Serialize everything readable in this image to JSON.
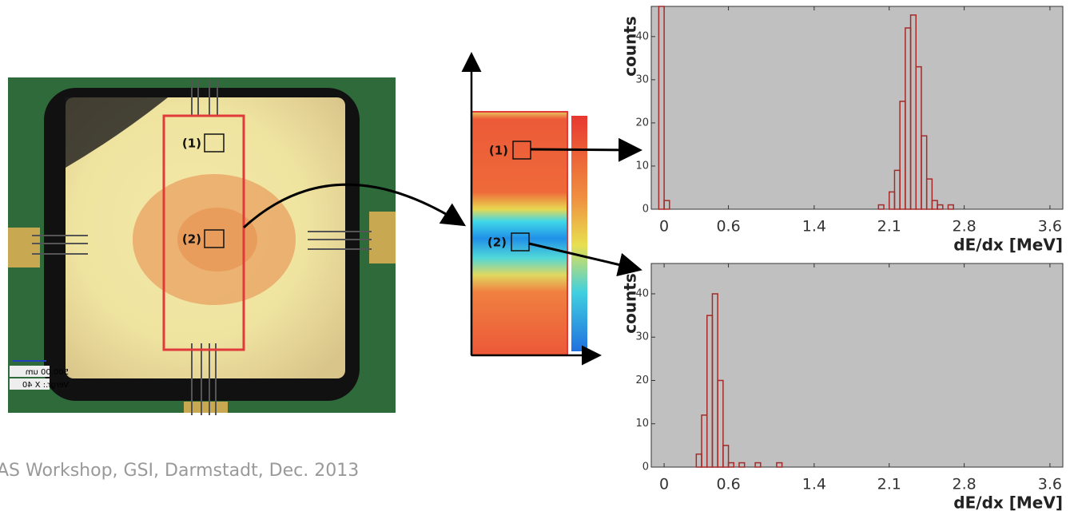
{
  "chart_data": [
    {
      "type": "histogram",
      "x_label": "dE/dx [MeV]",
      "y_label": "counts",
      "color": "#a52a2a",
      "xlim": [
        -0.12,
        3.72
      ],
      "ylim": [
        0,
        47
      ],
      "xticks": [
        0,
        0.6,
        1.4,
        2.1,
        2.8,
        3.6
      ],
      "yticks": [
        0,
        10,
        20,
        30,
        40
      ],
      "bins": [
        -0.1,
        -0.05,
        0,
        0.05,
        0.1,
        0.15,
        0.2,
        0.25,
        0.3,
        0.35,
        0.4,
        0.45,
        0.5,
        0.55,
        0.6,
        0.65,
        0.7,
        0.75,
        0.8,
        0.85,
        0.9,
        0.95,
        1,
        1.05,
        1.1,
        1.15,
        1.2,
        1.25,
        1.3,
        1.35,
        1.4,
        1.45,
        1.5,
        1.55,
        1.6,
        1.65,
        1.7,
        1.75,
        1.8,
        1.85,
        1.9,
        1.95,
        2,
        2.05,
        2.1,
        2.15,
        2.2,
        2.25,
        2.3,
        2.35,
        2.4,
        2.45,
        2.5,
        2.55,
        2.6,
        2.65,
        2.7,
        2.75,
        2.8,
        2.85,
        2.9,
        2.95,
        3,
        3.05,
        3.1,
        3.15,
        3.2,
        3.25,
        3.3,
        3.35,
        3.4,
        3.45,
        3.5,
        3.55,
        3.6,
        3.65,
        3.7
      ],
      "values": [
        0,
        47,
        2,
        0,
        0,
        0,
        0,
        0,
        0,
        0,
        0,
        0,
        0,
        0,
        0,
        0,
        0,
        0,
        0,
        0,
        0,
        0,
        0,
        0,
        0,
        0,
        0,
        0,
        0,
        0,
        0,
        0,
        0,
        0,
        0,
        0,
        0,
        0,
        0,
        0,
        0,
        0,
        1,
        0,
        4,
        9,
        25,
        42,
        45,
        33,
        17,
        7,
        2,
        1,
        0,
        1,
        0,
        0,
        0,
        0,
        0,
        0,
        0,
        0,
        0,
        0,
        0,
        0,
        0,
        0,
        0,
        0,
        0,
        0,
        0,
        0
      ]
    },
    {
      "type": "histogram",
      "x_label": "dE/dx [MeV]",
      "y_label": "counts",
      "color": "#a52a2a",
      "xlim": [
        -0.12,
        3.72
      ],
      "ylim": [
        0,
        47
      ],
      "xticks": [
        0,
        0.6,
        1.4,
        2.1,
        2.8,
        3.6
      ],
      "yticks": [
        0,
        10,
        20,
        30,
        40
      ],
      "bins": [
        -0.1,
        -0.05,
        0,
        0.05,
        0.1,
        0.15,
        0.2,
        0.25,
        0.3,
        0.35,
        0.4,
        0.45,
        0.5,
        0.55,
        0.6,
        0.65,
        0.7,
        0.75,
        0.8,
        0.85,
        0.9,
        0.95,
        1,
        1.05,
        1.1,
        1.15,
        1.2,
        1.25,
        1.3,
        1.35,
        1.4,
        1.45,
        1.5,
        1.55,
        1.6,
        1.65,
        1.7,
        1.75,
        1.8,
        1.85,
        1.9,
        1.95,
        2,
        2.05,
        2.1,
        2.15,
        2.2,
        2.25,
        2.3,
        2.35,
        2.4,
        2.45,
        2.5,
        2.55,
        2.6,
        2.65,
        2.7,
        2.75,
        2.8,
        2.85,
        2.9,
        2.95,
        3,
        3.05,
        3.1,
        3.15,
        3.2,
        3.25,
        3.3,
        3.35,
        3.4,
        3.45,
        3.5,
        3.55,
        3.6,
        3.65,
        3.7
      ],
      "values": [
        0,
        0,
        0,
        0,
        0,
        0,
        0,
        0,
        3,
        12,
        35,
        40,
        20,
        5,
        1,
        0,
        1,
        0,
        0,
        1,
        0,
        0,
        0,
        1,
        0,
        0,
        0,
        0,
        0,
        0,
        0,
        0,
        0,
        0,
        0,
        0,
        0,
        0,
        0,
        0,
        0,
        0,
        0,
        0,
        0,
        0,
        0,
        0,
        0,
        0,
        0,
        0,
        0,
        0,
        0,
        0,
        0,
        0,
        0,
        0,
        0,
        0,
        0,
        0,
        0,
        0,
        0,
        0,
        0,
        0,
        0,
        0,
        0,
        0,
        0,
        0
      ]
    }
  ],
  "region_labels": [
    "(1)",
    "(2)"
  ],
  "scale_bar": "500.00 um",
  "magnification": "Vergr.: X 40",
  "footer": "AS Workshop, GSI, Darmstadt, Dec. 2013"
}
